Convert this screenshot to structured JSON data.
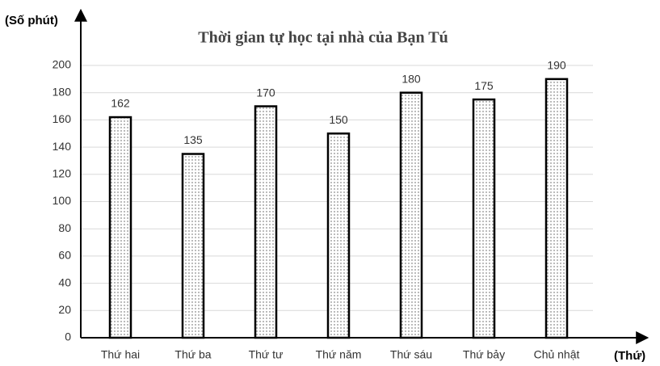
{
  "chart_data": {
    "type": "bar",
    "title": "Thời gian tự học tại nhà của Bạn Tú",
    "y_label": "(Số phút)",
    "x_label": "(Thứ)",
    "categories": [
      "Thứ hai",
      "Thứ ba",
      "Thứ tư",
      "Thứ năm",
      "Thứ sáu",
      "Thứ bảy",
      "Chủ nhật"
    ],
    "values": [
      162,
      135,
      170,
      150,
      180,
      175,
      190
    ],
    "ylim": [
      0,
      200
    ],
    "yticks": [
      0,
      20,
      40,
      60,
      80,
      100,
      120,
      140,
      160,
      180,
      200
    ],
    "grid": true
  }
}
